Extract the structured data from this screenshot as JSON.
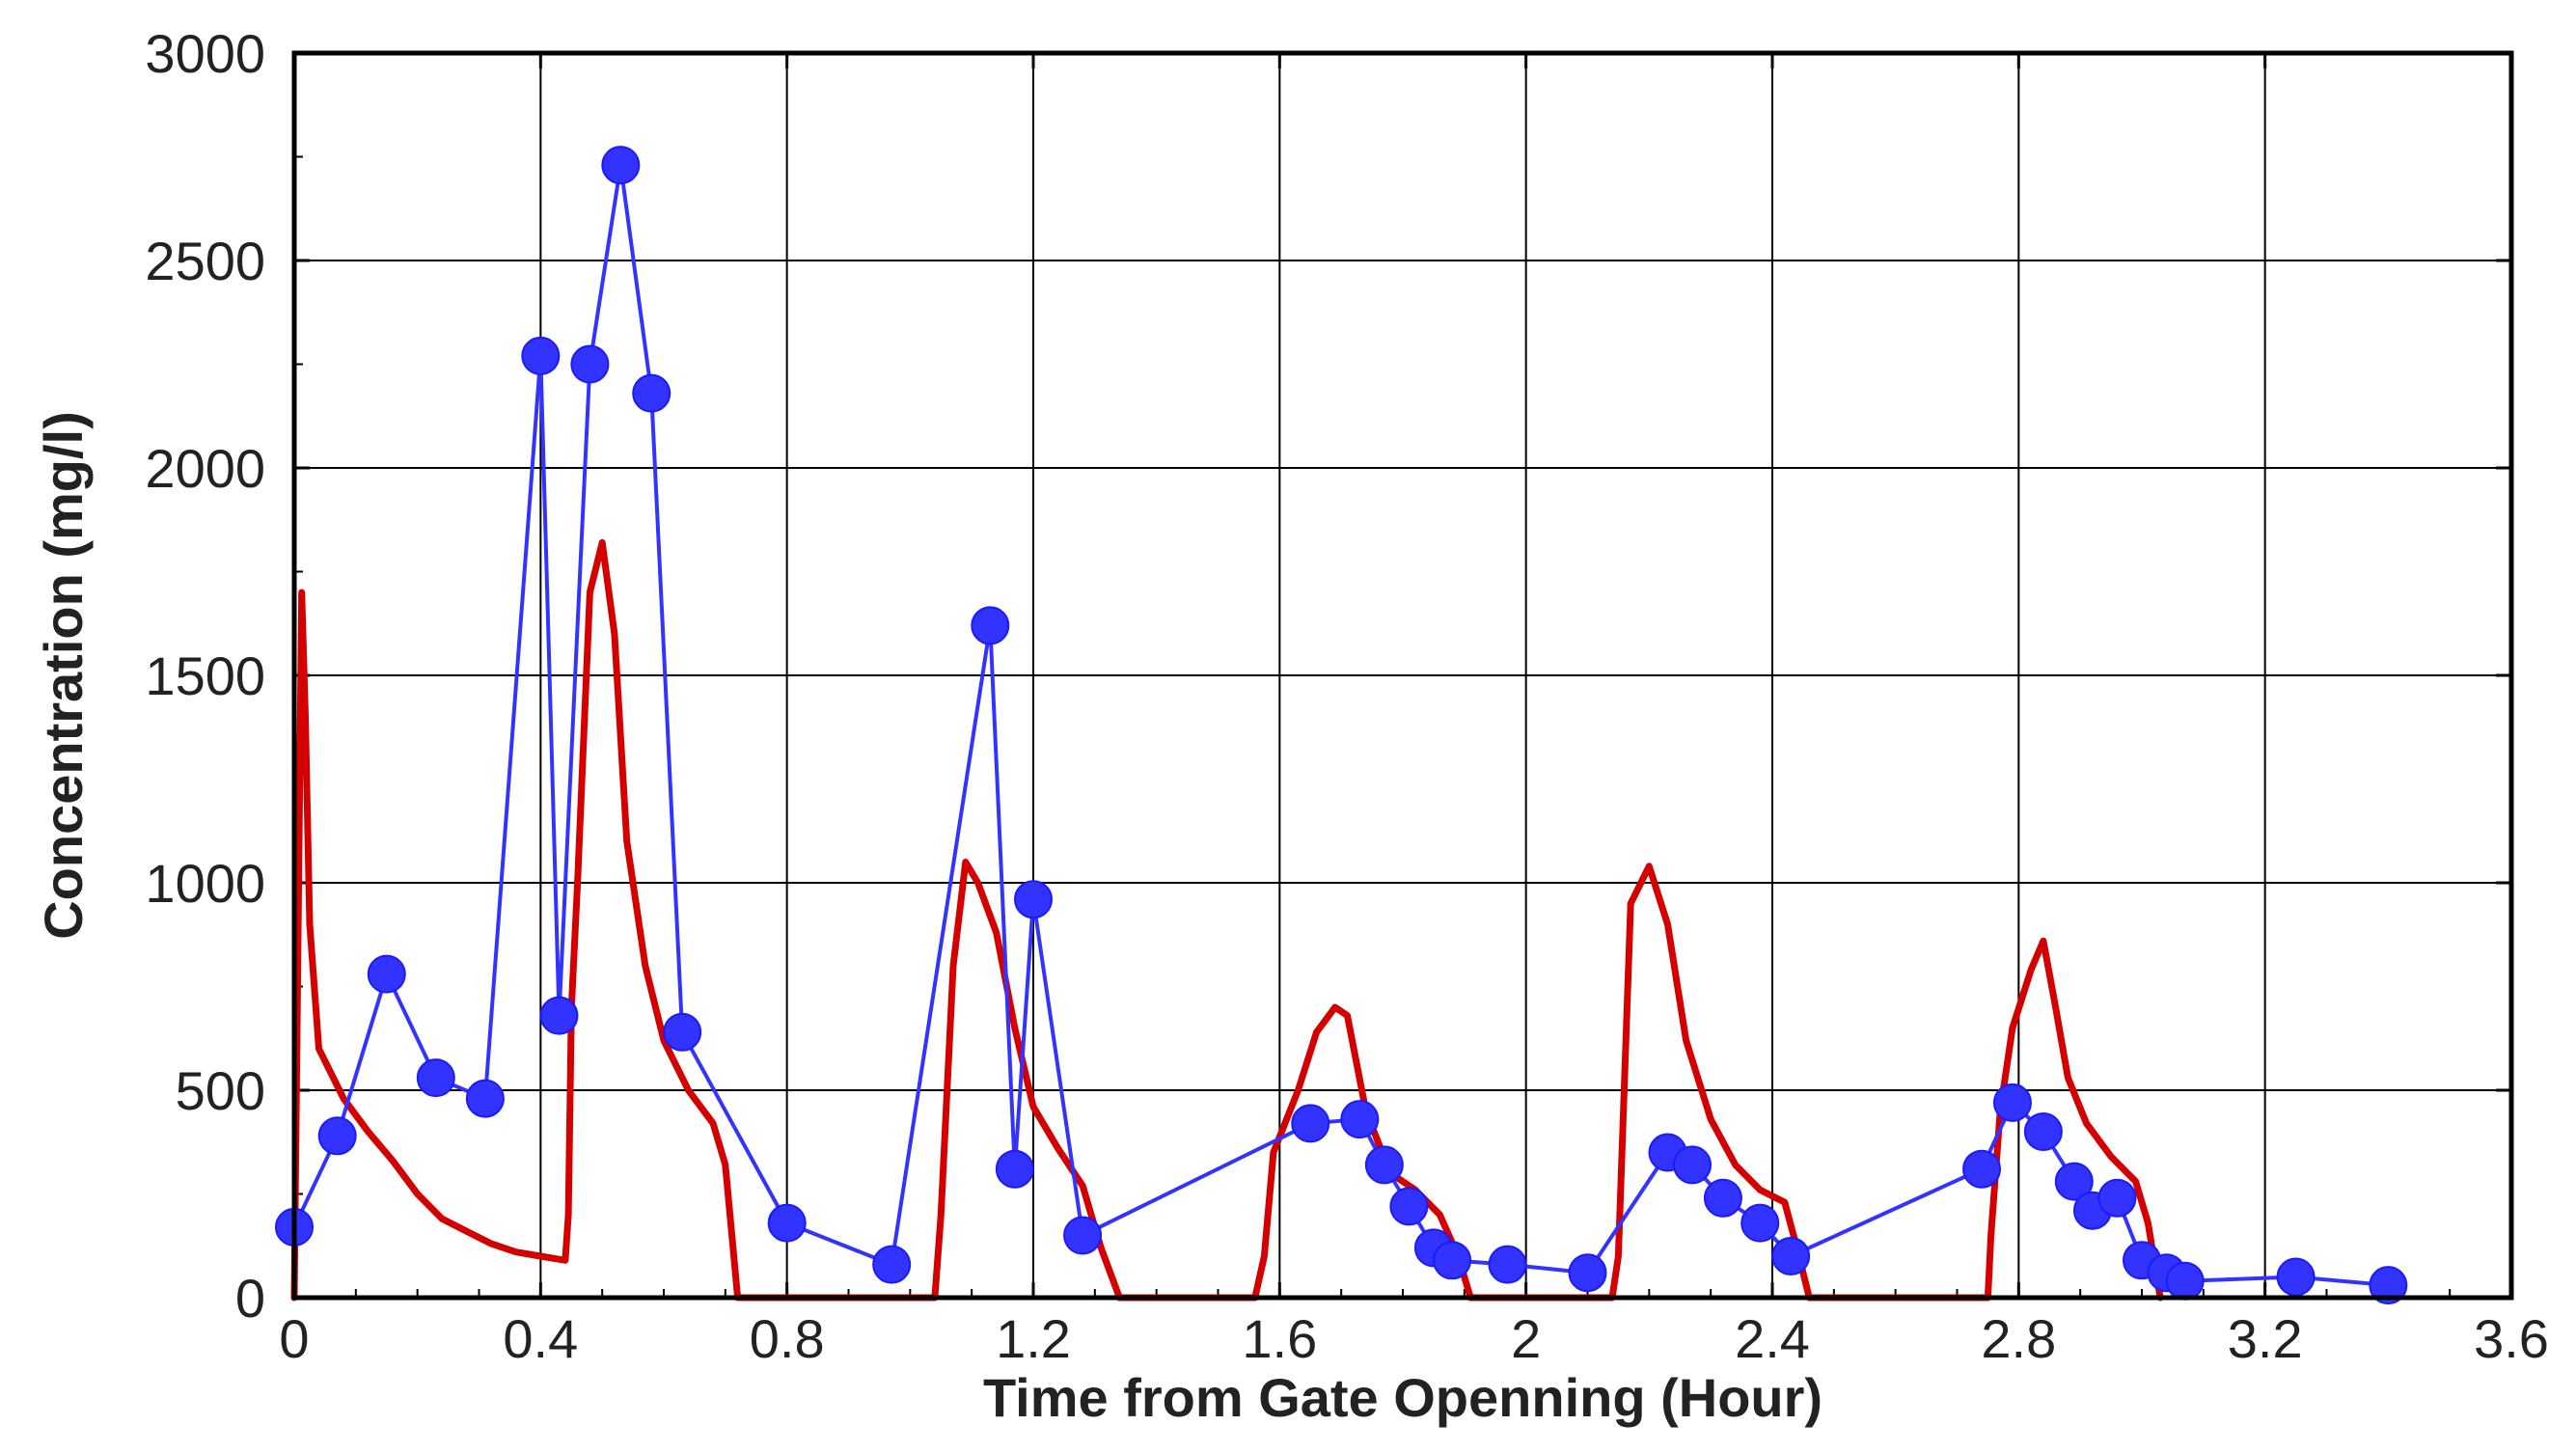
{
  "chart_data": {
    "type": "line",
    "title": "",
    "xlabel": "Time from Gate Openning (Hour)",
    "ylabel": "Concentration (mg/l)",
    "xlim": [
      0,
      3.6
    ],
    "ylim": [
      0,
      3000
    ],
    "xticks": [
      "0",
      "0.4",
      "0.8",
      "1.2",
      "1.6",
      "2",
      "2.4",
      "2.8",
      "3.2",
      "3.6"
    ],
    "yticks": [
      "0",
      "500",
      "1000",
      "1500",
      "2000",
      "2500",
      "3000"
    ],
    "grid": true,
    "legend": "none",
    "series": [
      {
        "style": "line",
        "color": "#d40000",
        "points": [
          [
            0.0,
            0
          ],
          [
            0.005,
            700
          ],
          [
            0.012,
            1700
          ],
          [
            0.018,
            1400
          ],
          [
            0.025,
            900
          ],
          [
            0.04,
            600
          ],
          [
            0.08,
            480
          ],
          [
            0.12,
            400
          ],
          [
            0.16,
            330
          ],
          [
            0.2,
            250
          ],
          [
            0.24,
            190
          ],
          [
            0.28,
            160
          ],
          [
            0.32,
            130
          ],
          [
            0.36,
            110
          ],
          [
            0.4,
            100
          ],
          [
            0.44,
            90
          ],
          [
            0.445,
            200
          ],
          [
            0.45,
            700
          ],
          [
            0.46,
            1000
          ],
          [
            0.48,
            1700
          ],
          [
            0.5,
            1820
          ],
          [
            0.52,
            1600
          ],
          [
            0.54,
            1100
          ],
          [
            0.57,
            800
          ],
          [
            0.6,
            620
          ],
          [
            0.64,
            500
          ],
          [
            0.68,
            420
          ],
          [
            0.7,
            320
          ],
          [
            0.72,
            0
          ],
          [
            1.04,
            0
          ],
          [
            1.05,
            200
          ],
          [
            1.07,
            800
          ],
          [
            1.09,
            1050
          ],
          [
            1.11,
            1000
          ],
          [
            1.14,
            880
          ],
          [
            1.17,
            650
          ],
          [
            1.2,
            460
          ],
          [
            1.24,
            360
          ],
          [
            1.28,
            270
          ],
          [
            1.31,
            120
          ],
          [
            1.34,
            0
          ],
          [
            1.56,
            0
          ],
          [
            1.575,
            100
          ],
          [
            1.59,
            350
          ],
          [
            1.63,
            500
          ],
          [
            1.66,
            640
          ],
          [
            1.69,
            700
          ],
          [
            1.71,
            680
          ],
          [
            1.74,
            450
          ],
          [
            1.78,
            300
          ],
          [
            1.82,
            260
          ],
          [
            1.86,
            200
          ],
          [
            1.89,
            100
          ],
          [
            1.91,
            0
          ],
          [
            2.14,
            0
          ],
          [
            2.15,
            100
          ],
          [
            2.17,
            950
          ],
          [
            2.2,
            1040
          ],
          [
            2.23,
            900
          ],
          [
            2.26,
            620
          ],
          [
            2.3,
            430
          ],
          [
            2.34,
            320
          ],
          [
            2.38,
            260
          ],
          [
            2.42,
            230
          ],
          [
            2.44,
            120
          ],
          [
            2.46,
            0
          ],
          [
            2.75,
            0
          ],
          [
            2.755,
            150
          ],
          [
            2.77,
            450
          ],
          [
            2.79,
            650
          ],
          [
            2.82,
            790
          ],
          [
            2.84,
            860
          ],
          [
            2.86,
            700
          ],
          [
            2.88,
            530
          ],
          [
            2.91,
            420
          ],
          [
            2.95,
            340
          ],
          [
            2.99,
            280
          ],
          [
            3.01,
            180
          ],
          [
            3.03,
            0
          ]
        ]
      },
      {
        "style": "line-markers",
        "color": "#3333ff",
        "points": [
          [
            0.0,
            170
          ],
          [
            0.07,
            390
          ],
          [
            0.15,
            780
          ],
          [
            0.23,
            530
          ],
          [
            0.31,
            480
          ],
          [
            0.4,
            2270
          ],
          [
            0.43,
            680
          ],
          [
            0.48,
            2250
          ],
          [
            0.53,
            2730
          ],
          [
            0.58,
            2180
          ],
          [
            0.63,
            640
          ],
          [
            0.8,
            180
          ],
          [
            0.97,
            80
          ],
          [
            1.13,
            1620
          ],
          [
            1.17,
            310
          ],
          [
            1.2,
            960
          ],
          [
            1.28,
            150
          ],
          [
            1.65,
            420
          ],
          [
            1.73,
            430
          ],
          [
            1.77,
            320
          ],
          [
            1.81,
            220
          ],
          [
            1.85,
            120
          ],
          [
            1.88,
            90
          ],
          [
            1.97,
            80
          ],
          [
            2.1,
            60
          ],
          [
            2.23,
            350
          ],
          [
            2.27,
            320
          ],
          [
            2.32,
            240
          ],
          [
            2.38,
            180
          ],
          [
            2.43,
            100
          ],
          [
            2.74,
            310
          ],
          [
            2.79,
            470
          ],
          [
            2.84,
            400
          ],
          [
            2.89,
            280
          ],
          [
            2.92,
            210
          ],
          [
            2.96,
            240
          ],
          [
            3.0,
            90
          ],
          [
            3.04,
            60
          ],
          [
            3.07,
            40
          ],
          [
            3.25,
            50
          ],
          [
            3.4,
            30
          ]
        ]
      }
    ]
  }
}
